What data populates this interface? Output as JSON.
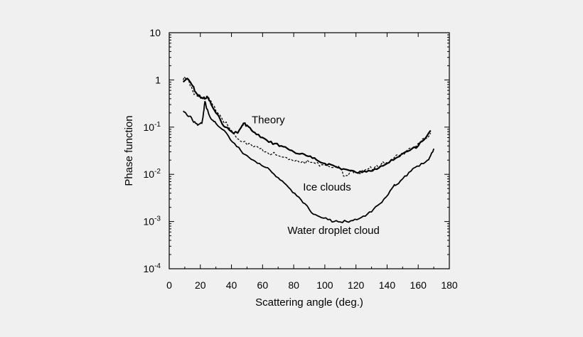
{
  "chart_data": {
    "type": "line",
    "title": "",
    "xlabel": "Scattering angle (deg.)",
    "ylabel": "Phase function",
    "xlim": [
      0,
      180
    ],
    "ylim": [
      0.0001,
      10
    ],
    "y_scale": "log",
    "grid": false,
    "x_ticks": [
      "0",
      "20",
      "40",
      "60",
      "80",
      "100",
      "120",
      "140",
      "160",
      "180"
    ],
    "x_tick_values": [
      0,
      20,
      40,
      60,
      80,
      100,
      120,
      140,
      160,
      180
    ],
    "y_ticks": [
      {
        "value": 10,
        "base": "10",
        "exp": ""
      },
      {
        "value": 1,
        "base": "1",
        "exp": ""
      },
      {
        "value": 0.1,
        "base": "10",
        "exp": "-1"
      },
      {
        "value": 0.01,
        "base": "10",
        "exp": "-2"
      },
      {
        "value": 0.001,
        "base": "10",
        "exp": "-3"
      },
      {
        "value": 0.0001,
        "base": "10",
        "exp": "-4"
      }
    ],
    "series": [
      {
        "name": "Theory",
        "style": "solid-thick",
        "x": [
          9,
          11,
          13,
          15,
          17,
          19,
          21,
          23,
          25,
          27,
          30,
          33,
          36,
          40,
          44,
          47,
          48,
          50,
          53,
          56,
          60,
          64,
          68,
          72,
          76,
          80,
          84,
          88,
          92,
          96,
          100,
          104,
          108,
          112,
          116,
          120,
          124,
          128,
          132,
          136,
          140,
          144,
          148,
          152,
          156,
          160,
          164,
          168
        ],
        "y": [
          0.9,
          1.05,
          0.95,
          0.75,
          0.55,
          0.45,
          0.42,
          0.4,
          0.42,
          0.3,
          0.2,
          0.14,
          0.1,
          0.08,
          0.075,
          0.11,
          0.12,
          0.11,
          0.085,
          0.07,
          0.06,
          0.048,
          0.045,
          0.04,
          0.035,
          0.03,
          0.027,
          0.025,
          0.022,
          0.019,
          0.017,
          0.016,
          0.014,
          0.013,
          0.012,
          0.011,
          0.011,
          0.012,
          0.013,
          0.015,
          0.017,
          0.02,
          0.024,
          0.03,
          0.035,
          0.04,
          0.055,
          0.085
        ]
      },
      {
        "name": "Ice clouds",
        "style": "dashed-mixed",
        "x": [
          9,
          11,
          13,
          15,
          18,
          21,
          24,
          27,
          30,
          34,
          38,
          42,
          46,
          50,
          54,
          58,
          62,
          66,
          70,
          74,
          78,
          82,
          86,
          90,
          94,
          98,
          102,
          106,
          110,
          113,
          116,
          120,
          124,
          128,
          132,
          136,
          140,
          144,
          148,
          152,
          156,
          160,
          164,
          168
        ],
        "y": [
          1.0,
          1.1,
          0.85,
          0.6,
          0.45,
          0.42,
          0.45,
          0.35,
          0.22,
          0.15,
          0.1,
          0.07,
          0.05,
          0.042,
          0.038,
          0.035,
          0.03,
          0.027,
          0.025,
          0.023,
          0.021,
          0.02,
          0.019,
          0.018,
          0.017,
          0.016,
          0.015,
          0.014,
          0.013,
          0.009,
          0.011,
          0.011,
          0.012,
          0.013,
          0.014,
          0.016,
          0.018,
          0.021,
          0.025,
          0.03,
          0.036,
          0.045,
          0.06,
          0.075
        ]
      },
      {
        "name": "Water droplet cloud",
        "style": "solid",
        "x": [
          9,
          11,
          13,
          15,
          17,
          19,
          21,
          22,
          23,
          24,
          26,
          28,
          30,
          34,
          38,
          42,
          46,
          50,
          54,
          58,
          62,
          66,
          70,
          74,
          78,
          82,
          86,
          90,
          94,
          98,
          102,
          106,
          110,
          114,
          118,
          122,
          126,
          130,
          134,
          138,
          142,
          144,
          146,
          150,
          154,
          158,
          162,
          166,
          168,
          170
        ],
        "y": [
          0.22,
          0.19,
          0.17,
          0.14,
          0.12,
          0.115,
          0.12,
          0.2,
          0.35,
          0.25,
          0.17,
          0.14,
          0.12,
          0.09,
          0.065,
          0.045,
          0.032,
          0.025,
          0.02,
          0.017,
          0.014,
          0.011,
          0.0085,
          0.0065,
          0.0048,
          0.0035,
          0.0025,
          0.0018,
          0.0014,
          0.0012,
          0.0011,
          0.001,
          0.00098,
          0.001,
          0.00105,
          0.00115,
          0.0013,
          0.0016,
          0.0022,
          0.003,
          0.0045,
          0.0055,
          0.006,
          0.008,
          0.011,
          0.014,
          0.017,
          0.02,
          0.025,
          0.035
        ]
      }
    ],
    "annotations": [
      {
        "text": "Theory",
        "x": 53,
        "y": 0.12
      },
      {
        "text": "Ice clouds",
        "x": 86,
        "y": 0.0045
      },
      {
        "text": "Water droplet cloud",
        "x": 76,
        "y": 0.00055
      }
    ]
  }
}
